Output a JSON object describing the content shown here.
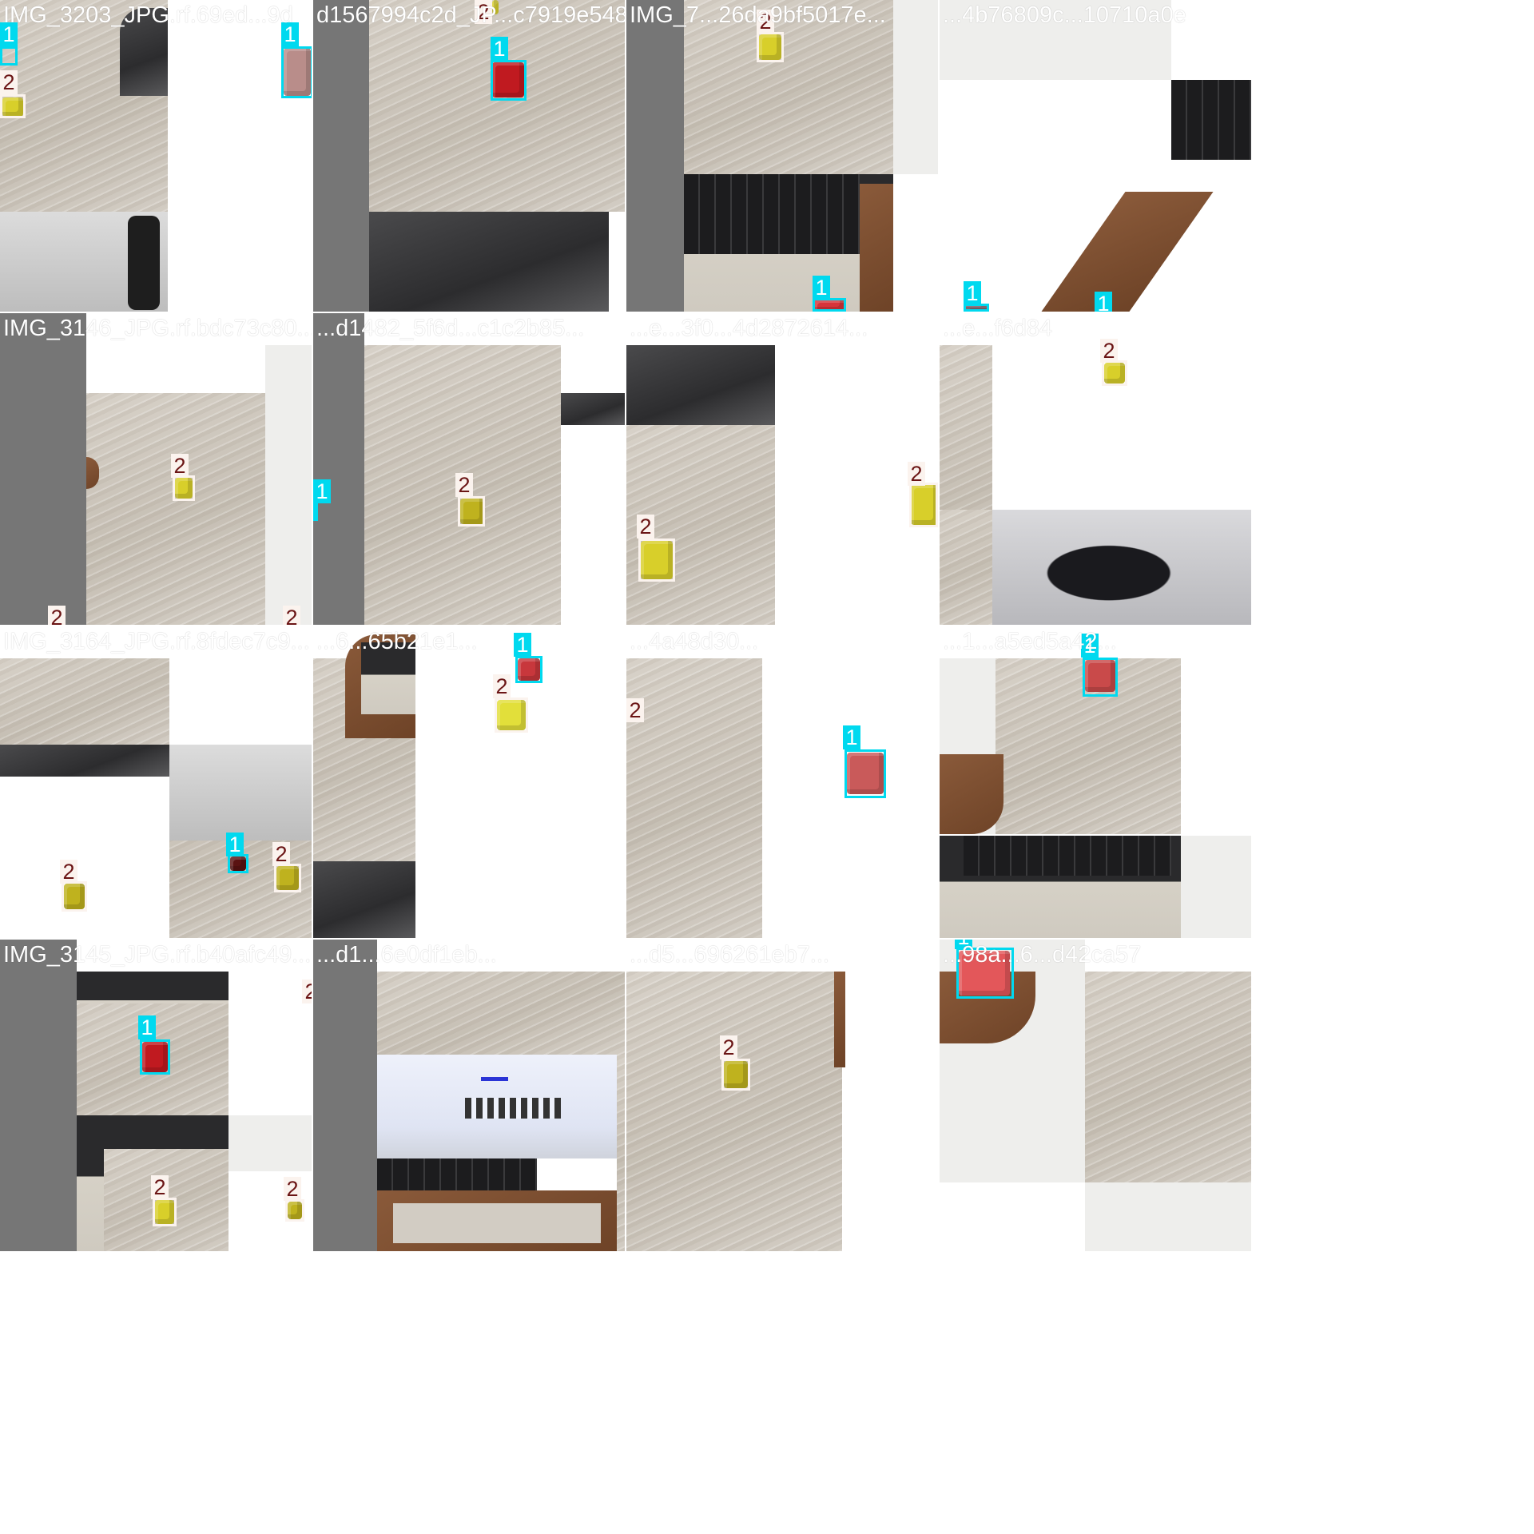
{
  "mosaic": {
    "cells": [
      {
        "caption": "IMG_3203_JPG.rf.69ed...9d",
        "scene": "desk with laptop edge and soda bottle",
        "colors": [
          "wood",
          "wood2",
          "bw",
          "wood3"
        ]
      },
      {
        "caption": "d1567994c2d_JP...c7919e548e",
        "scene": "desk with red cube and charger",
        "colors": [
          "grey",
          "wood",
          "grey",
          "dark"
        ]
      },
      {
        "caption": "IMG_7...26da9bf5017e...",
        "scene": "laptop keyboard on leather pad",
        "colors": [
          "grey",
          "wood",
          "laptop",
          "white"
        ]
      },
      {
        "caption": "...4b76809c...10710a0e",
        "scene": "desk corner with leather pad",
        "colors": [
          "white",
          "wood2",
          "wood3",
          "wood"
        ]
      },
      {
        "caption": "IMG_3146_JPG.rf.bdc73c80...",
        "scene": "desk with yellow cube",
        "colors": [
          "grey",
          "wood",
          "wood2",
          "white"
        ]
      },
      {
        "caption": "...d1482_5f6d...c1c2b85...",
        "scene": "desk with yellow cube and cable",
        "colors": [
          "grey",
          "wood",
          "wood3",
          "white"
        ]
      },
      {
        "caption": "...e...3f0...4d2872614...",
        "scene": "desk with charger and two yellow cubes",
        "colors": [
          "dark",
          "wood",
          "wood",
          "wood2"
        ]
      },
      {
        "caption": "...e...f6d84",
        "scene": "desk and person in background",
        "colors": [
          "wood",
          "wood3",
          "wood",
          "person"
        ]
      },
      {
        "caption": "IMG_3164_JPG.rf.8fdec7c9...",
        "scene": "desk with yellow cubes and small red cube",
        "colors": [
          "wood",
          "wood3",
          "wood2",
          "wood"
        ]
      },
      {
        "caption": "...6...65b21e1...",
        "scene": "desk with red and yellow cube near laptop",
        "colors": [
          "wood",
          "wood2",
          "dark",
          "wood"
        ]
      },
      {
        "caption": "...4a48d30...",
        "scene": "desk with red cube",
        "colors": [
          "wood",
          "wood4",
          "wood",
          "wood3"
        ]
      },
      {
        "caption": "...1...a5ed5a42...",
        "scene": "desk with red cube and laptop",
        "colors": [
          "white",
          "wood",
          "laptop",
          "wood2"
        ]
      },
      {
        "caption": "IMG_3145_JPG.rf.b40afc49...",
        "scene": "desk with laptop, red cube and yellow cubes",
        "colors": [
          "grey",
          "wood",
          "laptop",
          "wood2"
        ]
      },
      {
        "caption": "...d1...6e0df1eb...",
        "scene": "desk with laptop showing web page",
        "colors": [
          "grey",
          "wood",
          "screen",
          "wood"
        ]
      },
      {
        "caption": "...d5...696261eb7...",
        "scene": "desk with yellow cube",
        "colors": [
          "wood",
          "wood3",
          "wood",
          "wood2"
        ]
      },
      {
        "caption": "...98a...6...d42ca57",
        "scene": "desk with red cube on leather pad",
        "colors": [
          "leather",
          "wood",
          "white",
          "wood3"
        ]
      }
    ],
    "classes": [
      {
        "id": "1",
        "box_color": "#00d9ef",
        "cube_color": "#c01a20"
      },
      {
        "id": "2",
        "box_color": "#fbf3ee",
        "cube_color": "#d8cf2a"
      }
    ]
  }
}
